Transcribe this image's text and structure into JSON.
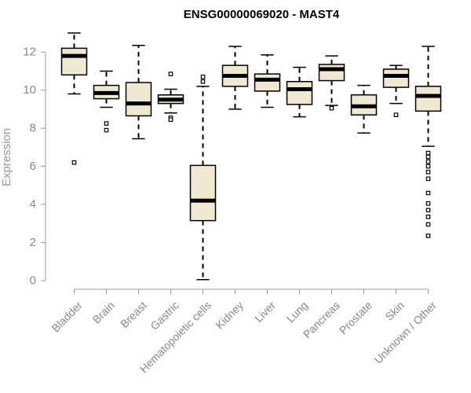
{
  "chart_data": {
    "type": "boxplot",
    "title": "ENSG00000069020 - MAST4",
    "xlabel": "",
    "ylabel": "Expression",
    "ylim": [
      0,
      13
    ],
    "yticks": [
      0,
      2,
      4,
      6,
      8,
      10,
      12
    ],
    "grid": false,
    "box_color": "#efe9d2",
    "categories": [
      "Bladder",
      "Brain",
      "Breast",
      "Gastric",
      "Hematopoietic cells",
      "Kidney",
      "Liver",
      "Lung",
      "Pancreas",
      "Prostate",
      "Skin",
      "Unknown / Other"
    ],
    "boxes": [
      {
        "whisker_low": 9.8,
        "q1": 10.8,
        "median": 11.8,
        "q3": 12.2,
        "whisker_high": 13.0,
        "outliers": [
          6.2
        ]
      },
      {
        "whisker_low": 9.1,
        "q1": 9.55,
        "median": 9.85,
        "q3": 10.25,
        "whisker_high": 11.0,
        "outliers": [
          8.25,
          7.9
        ]
      },
      {
        "whisker_low": 7.45,
        "q1": 8.65,
        "median": 9.3,
        "q3": 10.4,
        "whisker_high": 12.35,
        "outliers": []
      },
      {
        "whisker_low": 8.8,
        "q1": 9.3,
        "median": 9.5,
        "q3": 9.75,
        "whisker_high": 10.05,
        "outliers": [
          10.85,
          8.55,
          8.45
        ]
      },
      {
        "whisker_low": 0.05,
        "q1": 3.15,
        "median": 4.2,
        "q3": 6.05,
        "whisker_high": 10.2,
        "outliers": [
          10.7,
          10.45
        ]
      },
      {
        "whisker_low": 9.0,
        "q1": 10.2,
        "median": 10.75,
        "q3": 11.3,
        "whisker_high": 12.3,
        "outliers": []
      },
      {
        "whisker_low": 9.1,
        "q1": 9.95,
        "median": 10.55,
        "q3": 10.85,
        "whisker_high": 11.85,
        "outliers": []
      },
      {
        "whisker_low": 8.6,
        "q1": 9.25,
        "median": 10.05,
        "q3": 10.45,
        "whisker_high": 11.2,
        "outliers": []
      },
      {
        "whisker_low": 9.2,
        "q1": 10.5,
        "median": 11.1,
        "q3": 11.35,
        "whisker_high": 11.8,
        "outliers": [
          9.05
        ]
      },
      {
        "whisker_low": 7.75,
        "q1": 8.7,
        "median": 9.15,
        "q3": 9.75,
        "whisker_high": 10.25,
        "outliers": []
      },
      {
        "whisker_low": 9.3,
        "q1": 10.15,
        "median": 10.75,
        "q3": 11.1,
        "whisker_high": 11.3,
        "outliers": [
          8.7
        ]
      },
      {
        "whisker_low": 7.05,
        "q1": 8.9,
        "median": 9.7,
        "q3": 10.2,
        "whisker_high": 12.3,
        "outliers": [
          6.7,
          6.5,
          6.25,
          6.0,
          5.7,
          5.35,
          4.6,
          4.05,
          3.7,
          3.35,
          2.95,
          2.35
        ]
      }
    ]
  }
}
